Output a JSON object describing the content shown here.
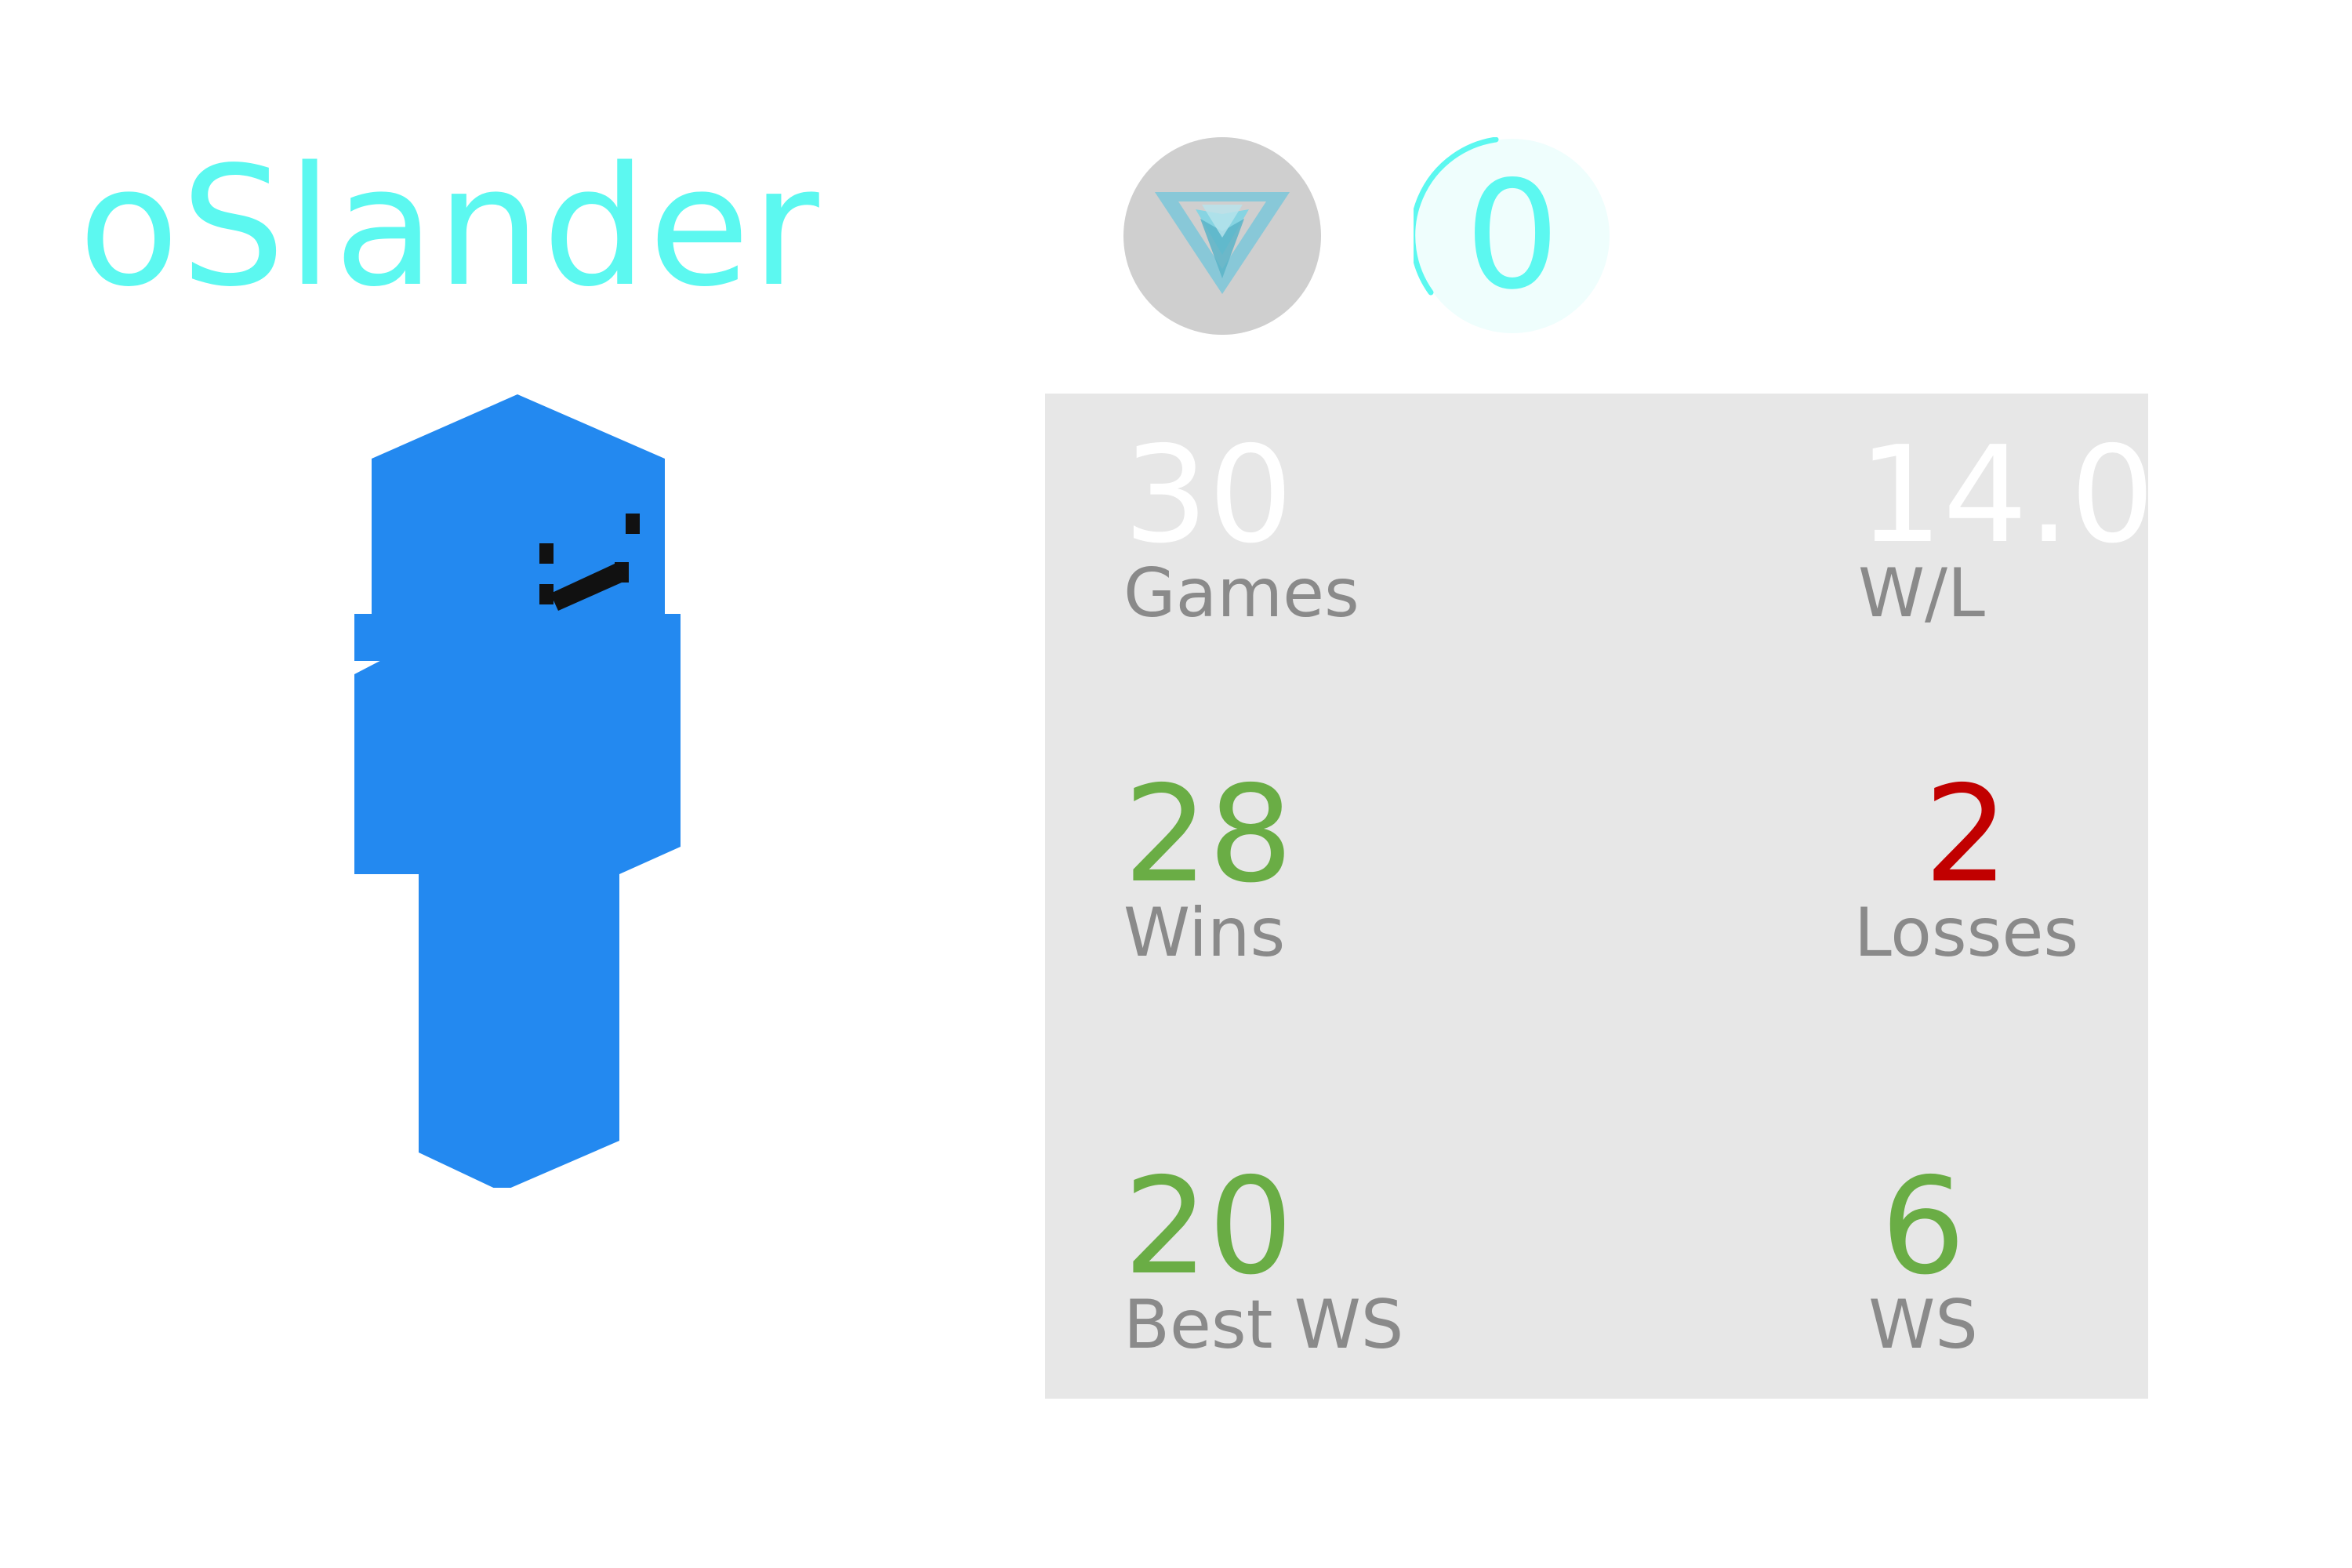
{
  "player": {
    "username": "oSlander"
  },
  "header": {
    "rank_icon": "triangle-emblem-icon",
    "level_value": "0",
    "level_progress": 0.08
  },
  "stats": {
    "games": {
      "value": "30",
      "label": "Games"
    },
    "wl": {
      "value": "14.0",
      "label": "W/L"
    },
    "wins": {
      "value": "28",
      "label": "Wins"
    },
    "losses": {
      "value": "2",
      "label": "Losses"
    },
    "best_ws": {
      "value": "20",
      "label": "Best WS"
    },
    "ws": {
      "value": "6",
      "label": "WS"
    }
  },
  "colors": {
    "accent": "#5cf8f0",
    "positive": "#6aad45",
    "negative": "#c10000",
    "label": "#8a8a8a",
    "panel": "#e7e7e7",
    "skin": "#2389f0"
  }
}
